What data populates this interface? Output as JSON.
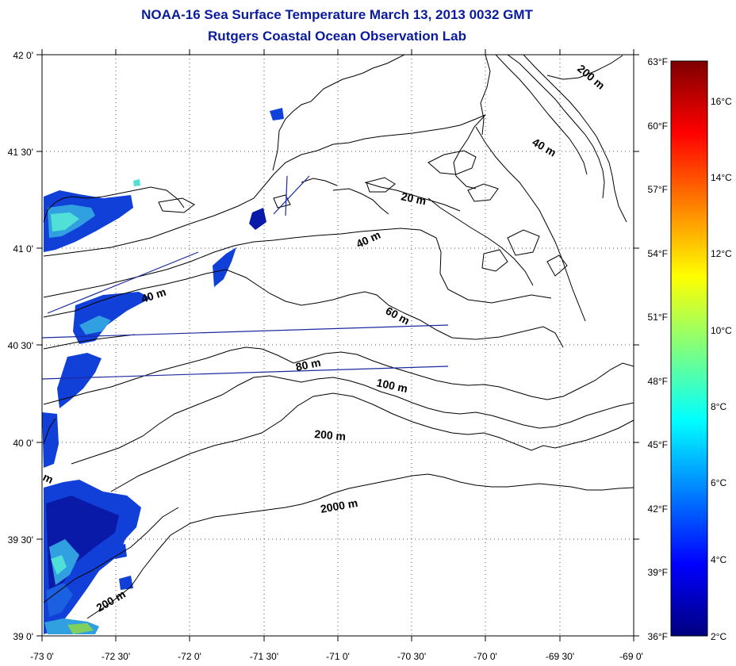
{
  "title": {
    "line1": "NOAA-16 Sea Surface Temperature March 13, 2013 0032 GMT",
    "line2": "Rutgers Coastal Ocean Observation Lab"
  },
  "map": {
    "lon_ticks": [
      "-73 0'",
      "-72 30'",
      "-72 0'",
      "-71 30'",
      "-71 0'",
      "-70 30'",
      "-70 0'",
      "-69 30'",
      "-69 0'"
    ],
    "lat_ticks": [
      "42 0'",
      "41 30'",
      "41 0'",
      "40 30'",
      "40 0'",
      "39 30'",
      "39 0'"
    ],
    "lon_range": [
      -73,
      -69
    ],
    "lat_range": [
      39,
      42
    ],
    "grid": "dotted",
    "contour_labels": [
      "200 m",
      "40 m",
      "20 m",
      "40 m",
      "60 m",
      "40 m",
      "80 m",
      "100 m",
      "200 m",
      "2000 m",
      "200 m",
      "m"
    ],
    "data_colors": {
      "deep_blue": "#0a1aa8",
      "blue": "#1040d8",
      "light_blue": "#30a0e0",
      "cyan": "#50e0d8",
      "green": "#80d060"
    }
  },
  "colorbar": {
    "fahrenheit_labels": [
      "63°F",
      "60°F",
      "57°F",
      "54°F",
      "51°F",
      "48°F",
      "45°F",
      "42°F",
      "39°F",
      "36°F"
    ],
    "celsius_labels": [
      "16°C",
      "14°C",
      "12°C",
      "10°C",
      "8°C",
      "6°C",
      "4°C",
      "2°C"
    ],
    "range_f": [
      36,
      63
    ],
    "range_c": [
      2,
      17.2
    ],
    "colormap": "jet",
    "colors": [
      "#00007f",
      "#0000ff",
      "#007fff",
      "#00ffff",
      "#7fff7f",
      "#ffff00",
      "#ff7f00",
      "#ff0000",
      "#7f0000"
    ]
  }
}
